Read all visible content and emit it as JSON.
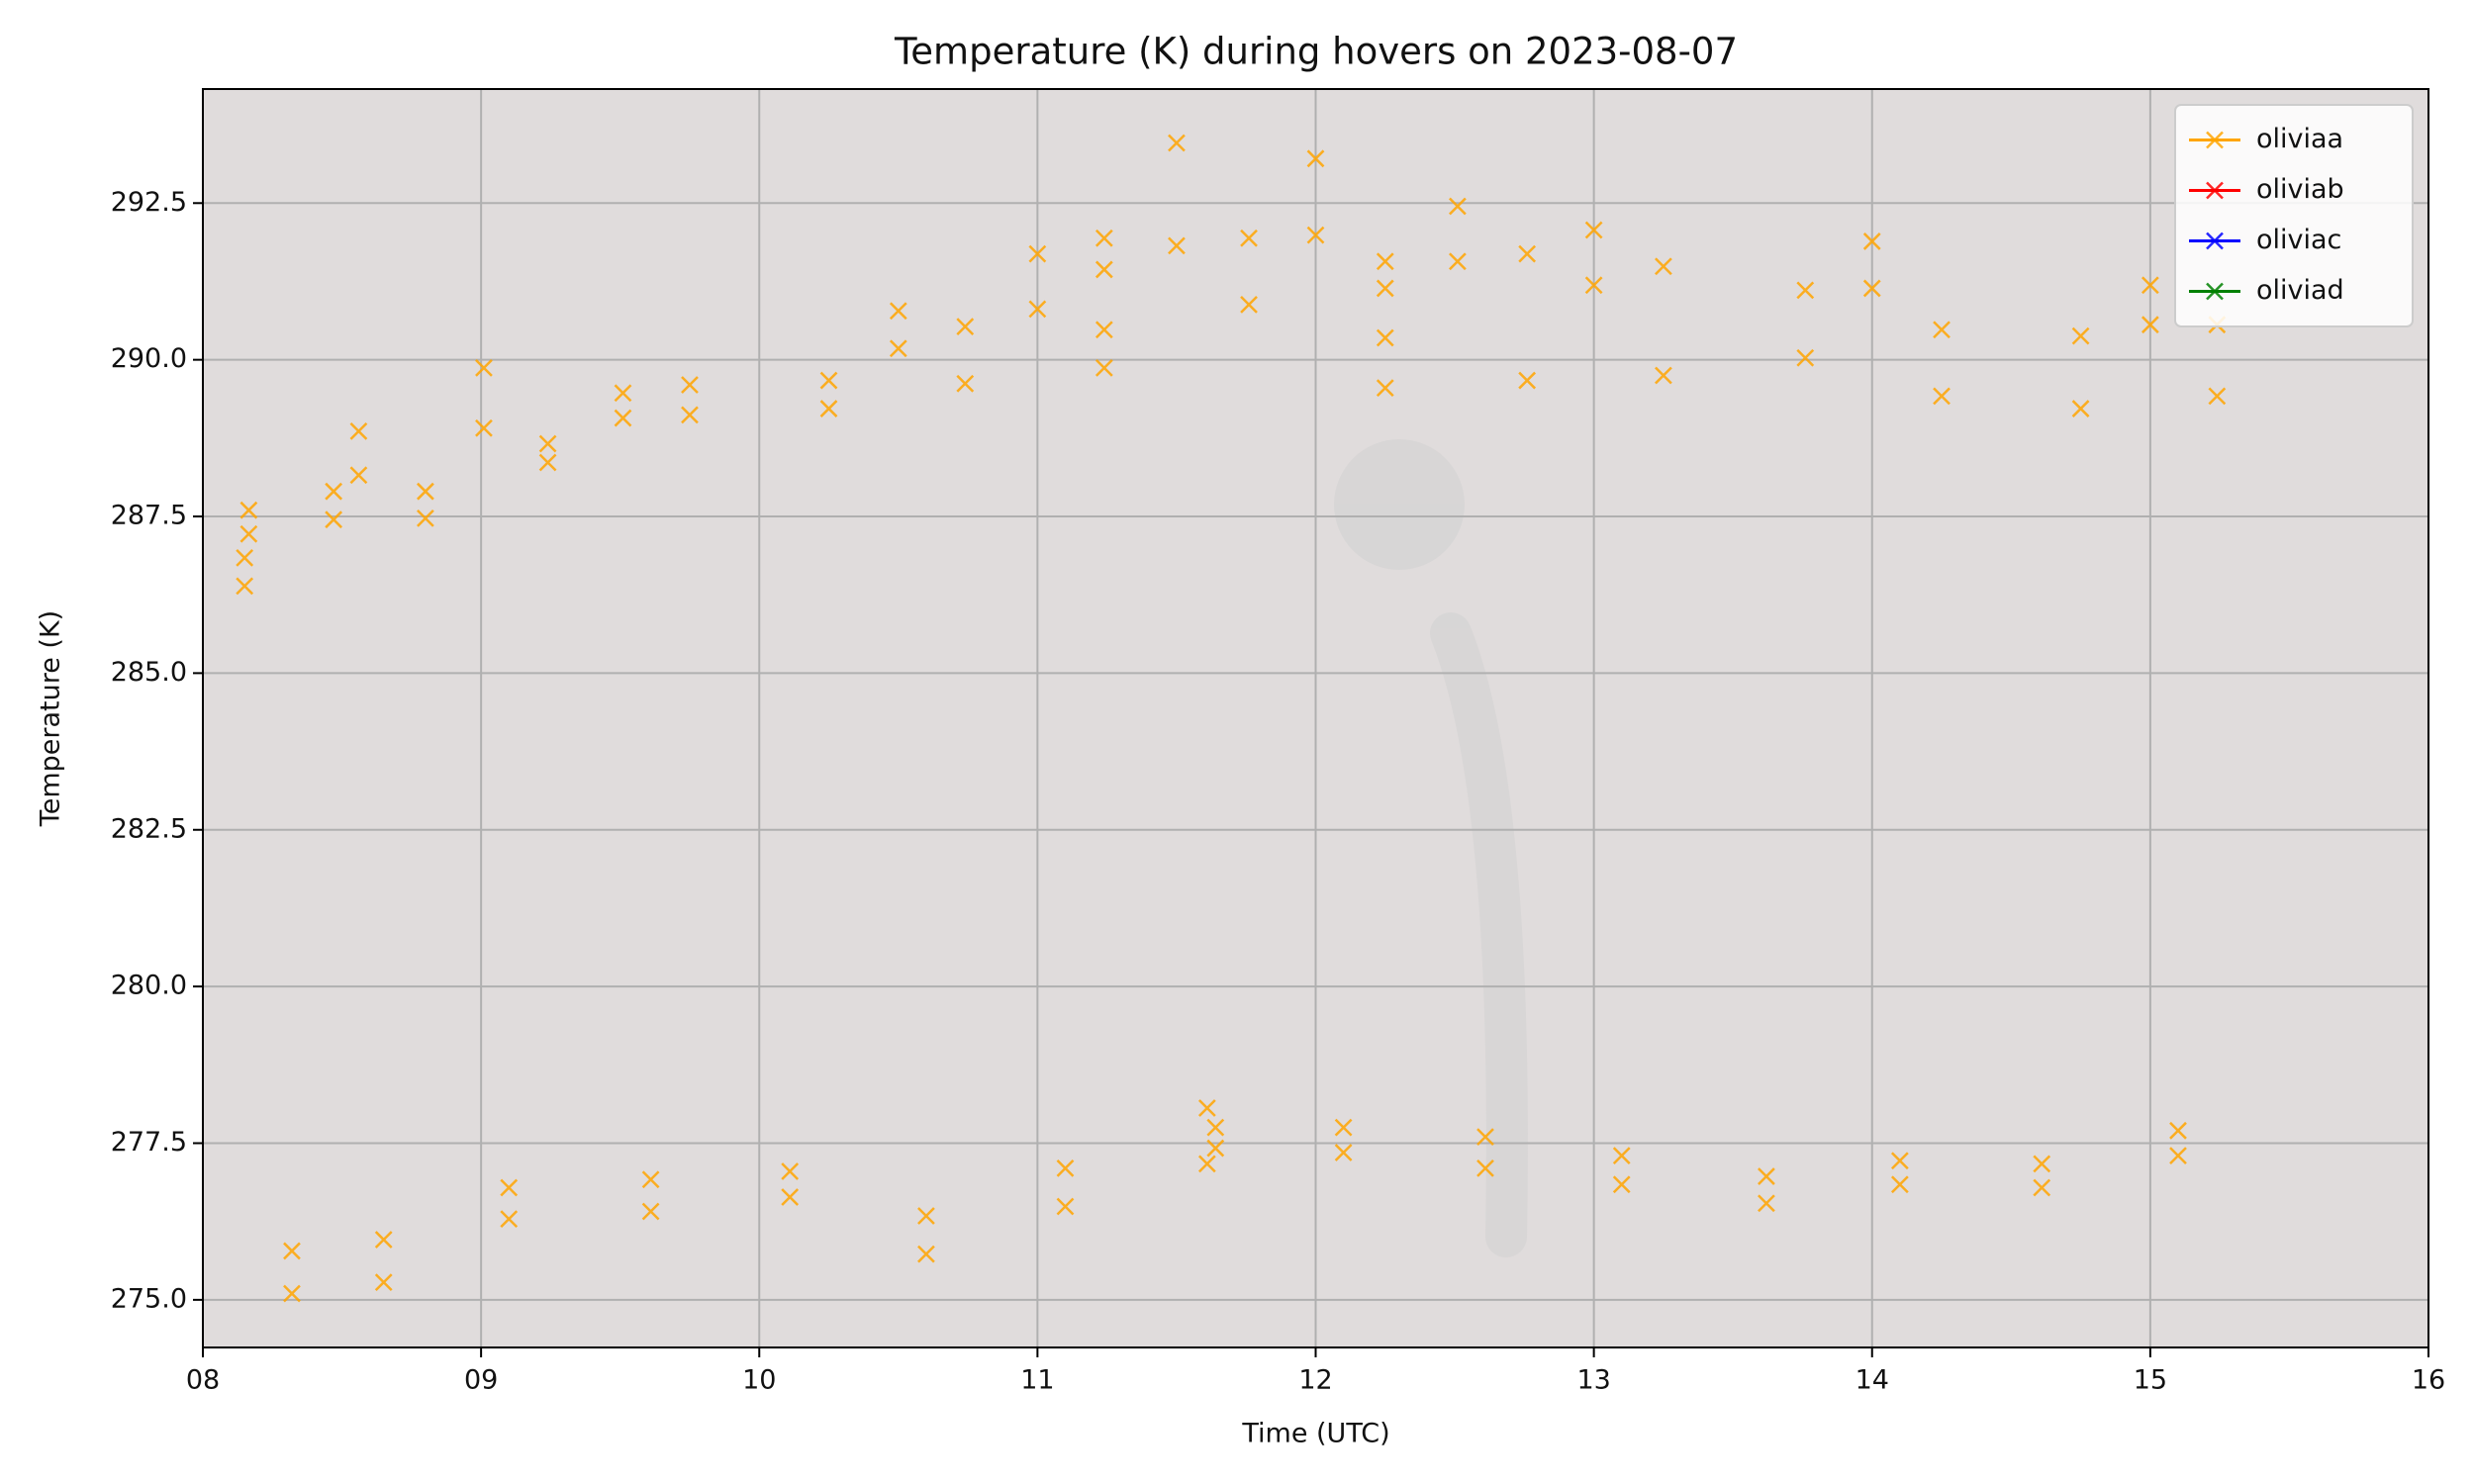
{
  "chart_data": {
    "type": "scatter",
    "title": "Temperature (K) during hovers on 2023-08-07",
    "x_label": "Time (UTC)",
    "y_label": "Temperature (K)",
    "xlim": [
      8,
      16
    ],
    "xticks": [
      {
        "value": 8,
        "label": "08"
      },
      {
        "value": 9,
        "label": "09"
      },
      10,
      11,
      12,
      13,
      14,
      15,
      16
    ],
    "ylim": [
      274.24,
      294.32
    ],
    "yticks": [
      {
        "value": 275,
        "label": "275.0"
      },
      277.5,
      {
        "value": 280,
        "label": "280.0"
      },
      282.5,
      {
        "value": 285,
        "label": "285.0"
      },
      287.5,
      {
        "value": 290,
        "label": "290.0"
      },
      292.5
    ],
    "grid": true,
    "legend": "upper right",
    "series": [
      {
        "name": "oliviaa",
        "color": "#ffa500",
        "x": [
          8.165,
          8.165,
          8.15,
          8.15,
          8.32,
          8.32,
          8.47,
          8.47,
          8.56,
          8.56,
          8.65,
          8.65,
          8.8,
          8.8,
          9.01,
          9.01,
          9.1,
          9.1,
          9.24,
          9.24,
          9.51,
          9.51,
          9.61,
          9.61,
          9.75,
          9.75,
          10.11,
          10.11,
          10.25,
          10.25,
          10.5,
          10.5,
          10.6,
          10.6,
          10.74,
          10.74,
          11.0,
          11.0,
          11.1,
          11.1,
          11.24,
          11.24,
          11.24,
          11.24,
          11.5,
          11.5,
          11.61,
          11.61,
          11.64,
          11.64,
          11.76,
          11.76,
          12.0,
          12.0,
          12.1,
          12.1,
          12.25,
          12.25,
          12.25,
          12.25,
          12.51,
          12.51,
          12.61,
          12.61,
          12.76,
          12.76,
          13.0,
          13.0,
          13.1,
          13.1,
          13.25,
          13.25,
          13.62,
          13.62,
          13.76,
          13.76,
          14.0,
          14.0,
          14.1,
          14.1,
          14.25,
          14.25,
          14.61,
          14.61,
          14.75,
          14.75,
          15.0,
          15.0,
          15.1,
          15.1,
          15.24,
          15.24
        ],
        "values": [
          287.6,
          287.22,
          286.84,
          286.39,
          275.78,
          275.1,
          287.9,
          287.45,
          288.86,
          288.16,
          275.96,
          275.28,
          287.9,
          287.47,
          289.87,
          288.91,
          276.79,
          276.29,
          288.66,
          288.36,
          289.47,
          289.07,
          276.92,
          276.41,
          289.6,
          289.12,
          277.05,
          276.64,
          289.67,
          289.22,
          290.78,
          290.18,
          276.34,
          275.73,
          290.53,
          289.62,
          291.69,
          290.81,
          277.1,
          276.49,
          291.94,
          291.44,
          290.48,
          289.87,
          293.46,
          291.82,
          278.06,
          277.17,
          277.75,
          277.42,
          291.94,
          290.88,
          293.21,
          291.99,
          277.75,
          277.35,
          291.57,
          291.14,
          290.35,
          289.55,
          292.45,
          291.57,
          277.6,
          277.1,
          291.69,
          289.67,
          292.07,
          291.19,
          277.3,
          276.84,
          291.49,
          289.75,
          276.97,
          276.54,
          291.11,
          290.03,
          291.89,
          291.14,
          277.22,
          276.84,
          290.48,
          289.42,
          277.17,
          276.79,
          290.38,
          289.22,
          291.19,
          290.56,
          277.7,
          277.3,
          290.56,
          289.42
        ]
      },
      {
        "name": "oliviab",
        "color": "#ff0000",
        "x": [],
        "values": []
      },
      {
        "name": "oliviac",
        "color": "#0000ff",
        "x": [],
        "values": []
      },
      {
        "name": "oliviad",
        "color": "#008000",
        "x": [],
        "values": []
      }
    ]
  }
}
